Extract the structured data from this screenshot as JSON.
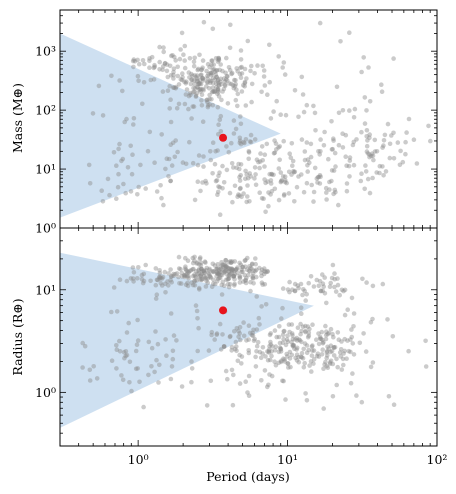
{
  "chart_data": [
    {
      "type": "scatter",
      "xlabel": "",
      "ylabel": "Mass (M⊕)",
      "xscale": "log",
      "yscale": "log",
      "xlim": [
        0.3,
        100
      ],
      "ylim": [
        1,
        5000
      ],
      "x_ticks": [],
      "y_ticks": [
        {
          "value": 1,
          "label": "10⁰"
        },
        {
          "value": 10,
          "label": "10¹"
        },
        {
          "value": 100,
          "label": "10²"
        },
        {
          "value": 1000,
          "label": "10³"
        }
      ],
      "region": {
        "color": "#c6dbef",
        "polygon": [
          [
            0.3,
            2000
          ],
          [
            9,
            40
          ],
          [
            0.3,
            1.5
          ]
        ]
      },
      "highlight": {
        "x": 3.7,
        "y": 34,
        "color": "#e8141c"
      },
      "point_color": "#8c8c8c",
      "clusters": [
        {
          "x": [
            0.3,
            100
          ],
          "y": [
            1,
            5000
          ],
          "n": 160
        },
        {
          "x": [
            1.5,
            6
          ],
          "y": [
            100,
            1000
          ],
          "n": 190
        },
        {
          "x": [
            0.6,
            4
          ],
          "y": [
            250,
            1200
          ],
          "n": 40
        },
        {
          "x": [
            1.5,
            30
          ],
          "y": [
            2,
            40
          ],
          "n": 160
        },
        {
          "x": [
            10,
            100
          ],
          "y": [
            3,
            100
          ],
          "n": 70
        },
        {
          "x": [
            0.4,
            2
          ],
          "y": [
            1.5,
            30
          ],
          "n": 30
        }
      ]
    },
    {
      "type": "scatter",
      "xlabel": "Period (days)",
      "ylabel": "Radius (R⊕)",
      "xscale": "log",
      "yscale": "log",
      "xlim": [
        0.3,
        100
      ],
      "ylim": [
        0.3,
        40
      ],
      "x_ticks": [
        {
          "value": 1,
          "label": "10⁰"
        },
        {
          "value": 10,
          "label": "10¹"
        },
        {
          "value": 100,
          "label": "10²"
        }
      ],
      "y_ticks": [
        {
          "value": 1,
          "label": "10⁰"
        },
        {
          "value": 10,
          "label": "10¹"
        }
      ],
      "region": {
        "color": "#c6dbef",
        "polygon": [
          [
            0.3,
            23
          ],
          [
            15,
            7
          ],
          [
            0.3,
            0.45
          ]
        ]
      },
      "highlight": {
        "x": 3.7,
        "y": 6.3,
        "color": "#e8141c"
      },
      "point_color": "#8c8c8c",
      "clusters": [
        {
          "x": [
            1.5,
            8
          ],
          "y": [
            10,
            22
          ],
          "n": 230
        },
        {
          "x": [
            0.7,
            3
          ],
          "y": [
            9,
            18
          ],
          "n": 50
        },
        {
          "x": [
            8,
            40
          ],
          "y": [
            8,
            15
          ],
          "n": 40
        },
        {
          "x": [
            0.4,
            100
          ],
          "y": [
            0.5,
            25
          ],
          "n": 150
        },
        {
          "x": [
            3,
            40
          ],
          "y": [
            1.5,
            5
          ],
          "n": 200
        },
        {
          "x": [
            0.4,
            2
          ],
          "y": [
            1,
            4
          ],
          "n": 30
        }
      ]
    }
  ]
}
